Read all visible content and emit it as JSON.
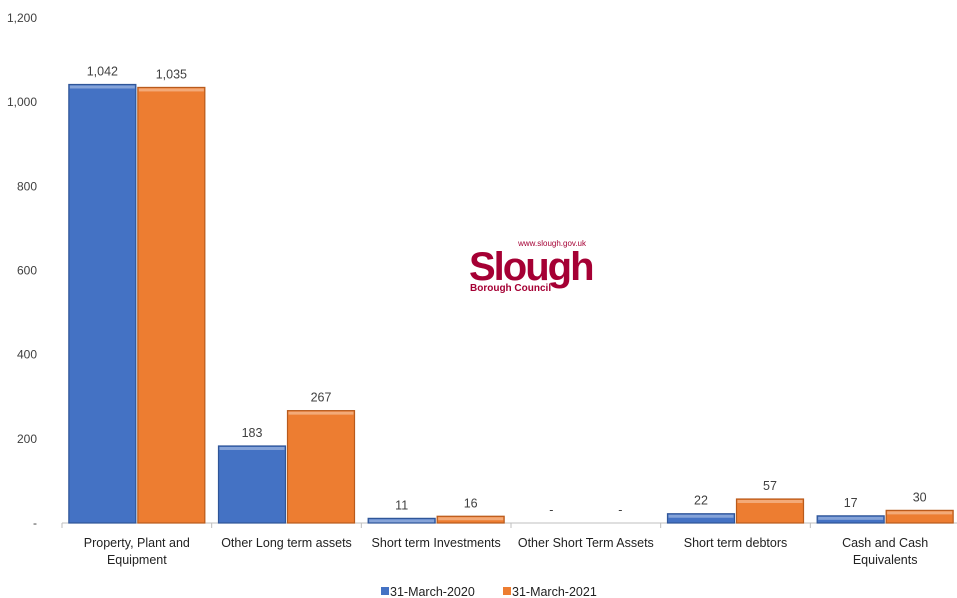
{
  "chart_data": {
    "type": "bar",
    "categories": [
      [
        "Property, Plant and",
        "Equipment"
      ],
      [
        "Other Long term assets"
      ],
      [
        "Short term Investments"
      ],
      [
        "Other Short Term Assets"
      ],
      [
        "Short term debtors"
      ],
      [
        "Cash and Cash",
        "Equivalents"
      ]
    ],
    "series": [
      {
        "name": "31-March-2020",
        "values": [
          1042,
          183,
          11,
          0,
          22,
          17
        ],
        "labels": [
          "1,042",
          "183",
          "11",
          "-",
          "22",
          "17"
        ]
      },
      {
        "name": "31-March-2021",
        "values": [
          1035,
          267,
          16,
          0,
          57,
          30
        ],
        "labels": [
          "1,035",
          "267",
          "16",
          "-",
          "57",
          "30"
        ]
      }
    ],
    "ylim": [
      0,
      1200
    ],
    "yticks": [
      0,
      200,
      400,
      600,
      800,
      1000,
      1200
    ],
    "ytick_labels": [
      "-",
      "200",
      "400",
      "600",
      "800",
      "1,000",
      "1,200"
    ],
    "legend_position": "bottom",
    "grid": false
  },
  "colors": {
    "series_2020": "#4472C4",
    "series_2020_dark": "#2F5597",
    "series_2021": "#ED7D31",
    "series_2021_dark": "#B85A1C",
    "logo": "#A50034"
  },
  "logo": {
    "url": "www.slough.gov.uk",
    "name": "Slough",
    "subtitle": "Borough Council"
  }
}
